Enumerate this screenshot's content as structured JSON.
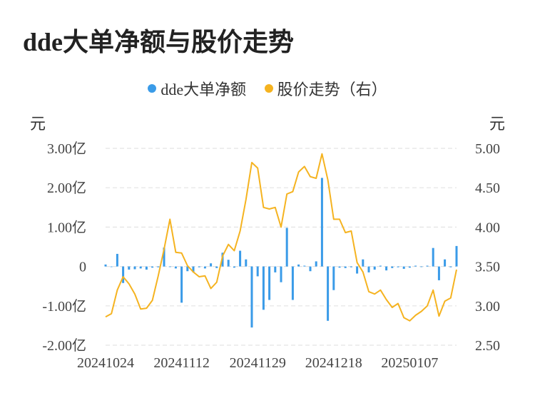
{
  "title": "dde大单净额与股价走势",
  "legend": [
    {
      "label": "dde大单净额",
      "color": "#3a9be8"
    },
    {
      "label": "股价走势（右）",
      "color": "#f5b320"
    }
  ],
  "left_unit": "元",
  "right_unit": "元",
  "chart_data": {
    "type": "bar+line",
    "left_axis": {
      "ticks": [
        "3.00亿",
        "2.00亿",
        "1.00亿",
        "0",
        "-1.00亿",
        "-2.00亿"
      ],
      "range": [
        -2.0,
        3.0
      ],
      "unit": "亿元"
    },
    "right_axis": {
      "ticks": [
        "5.00",
        "4.50",
        "4.00",
        "3.50",
        "3.00",
        "2.50"
      ],
      "range": [
        2.5,
        5.0
      ]
    },
    "x_tick_labels": [
      "20241024",
      "20241112",
      "20241129",
      "20241218",
      "20250107"
    ],
    "x_tick_indices": [
      0,
      13,
      26,
      39,
      52
    ],
    "dde_net": [
      0.05,
      0.0,
      0.32,
      -0.42,
      -0.08,
      -0.07,
      -0.05,
      -0.08,
      -0.03,
      -0.02,
      0.48,
      0.0,
      -0.05,
      -0.92,
      -0.12,
      -0.15,
      -0.02,
      -0.05,
      0.08,
      -0.04,
      0.35,
      0.17,
      -0.03,
      0.4,
      0.18,
      -1.55,
      -0.25,
      -1.1,
      -0.85,
      -0.15,
      -0.4,
      0.98,
      -0.85,
      0.05,
      0.02,
      -0.12,
      0.13,
      2.25,
      -1.38,
      -0.6,
      -0.03,
      -0.04,
      -0.02,
      -0.18,
      0.18,
      -0.15,
      -0.08,
      0.02,
      -0.1,
      -0.04,
      -0.02,
      -0.06,
      -0.03,
      0.02,
      0.0,
      0.02,
      0.47,
      -0.35,
      0.18,
      -0.02,
      0.52
    ],
    "price": [
      2.86,
      2.9,
      3.2,
      3.37,
      3.28,
      3.15,
      2.96,
      2.97,
      3.07,
      3.38,
      3.72,
      4.1,
      3.68,
      3.67,
      3.51,
      3.43,
      3.37,
      3.38,
      3.22,
      3.3,
      3.63,
      3.78,
      3.7,
      3.95,
      4.35,
      4.82,
      4.75,
      4.25,
      4.23,
      4.25,
      4.0,
      4.42,
      4.45,
      4.7,
      4.77,
      4.64,
      4.62,
      4.93,
      4.6,
      4.1,
      4.1,
      3.93,
      3.95,
      3.55,
      3.43,
      3.18,
      3.15,
      3.2,
      3.08,
      2.98,
      3.03,
      2.85,
      2.81,
      2.88,
      2.93,
      3.0,
      3.2,
      2.87,
      3.06,
      3.1,
      3.46
    ]
  }
}
